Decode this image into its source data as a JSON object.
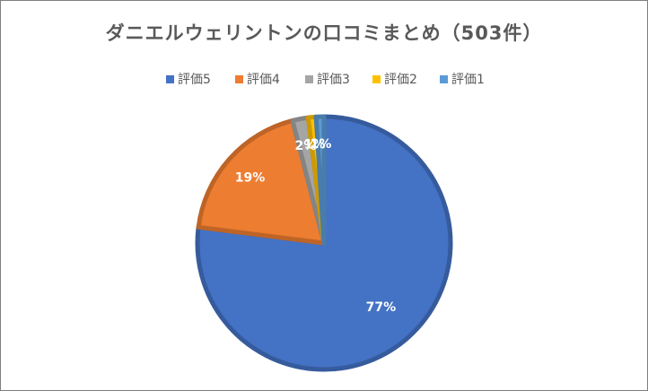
{
  "chart_data": {
    "type": "pie",
    "title": "ダニエルウェリントンの口コミまとめ（503件）",
    "categories": [
      "評価5",
      "評価4",
      "評価3",
      "評価2",
      "評価1"
    ],
    "values": [
      77,
      19,
      2,
      1,
      1
    ],
    "value_labels": [
      "77%",
      "19%",
      "2%",
      "1%",
      "1%"
    ],
    "colors": [
      "#4472c4",
      "#ed7d31",
      "#a5a5a5",
      "#ffc000",
      "#5b9bd5"
    ],
    "legend": "top"
  }
}
